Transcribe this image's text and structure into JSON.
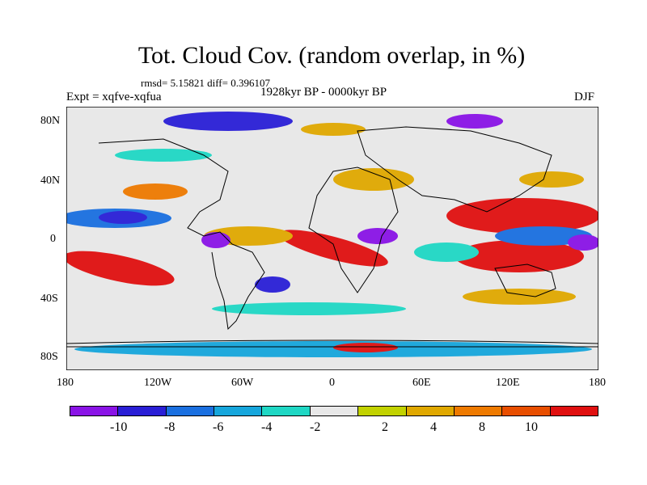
{
  "title": "Tot. Cloud Cov. (random overlap, in %)",
  "stats": "rmsd= 5.15821 diff= 0.396107",
  "experiment": "Expt = xqfve-xqfua",
  "period": "1928kyr BP - 0000kyr BP",
  "season": "DJF",
  "longitude_labels": [
    "180",
    "120W",
    "60W",
    "0",
    "60E",
    "120E",
    "180"
  ],
  "latitude_labels": [
    "80N",
    "40N",
    "0",
    "40S",
    "80S"
  ],
  "colorbar": {
    "colors": [
      "#8a13e6",
      "#2a1fd6",
      "#1a6fe0",
      "#16a6dc",
      "#1fd7c4",
      "#e8e8e8",
      "#c2d200",
      "#e0a800",
      "#ee7a00",
      "#e84e00",
      "#e01010"
    ],
    "labels": [
      "-10",
      "-8",
      "-6",
      "-4",
      "-2",
      "2",
      "4",
      "8",
      "10"
    ]
  }
}
